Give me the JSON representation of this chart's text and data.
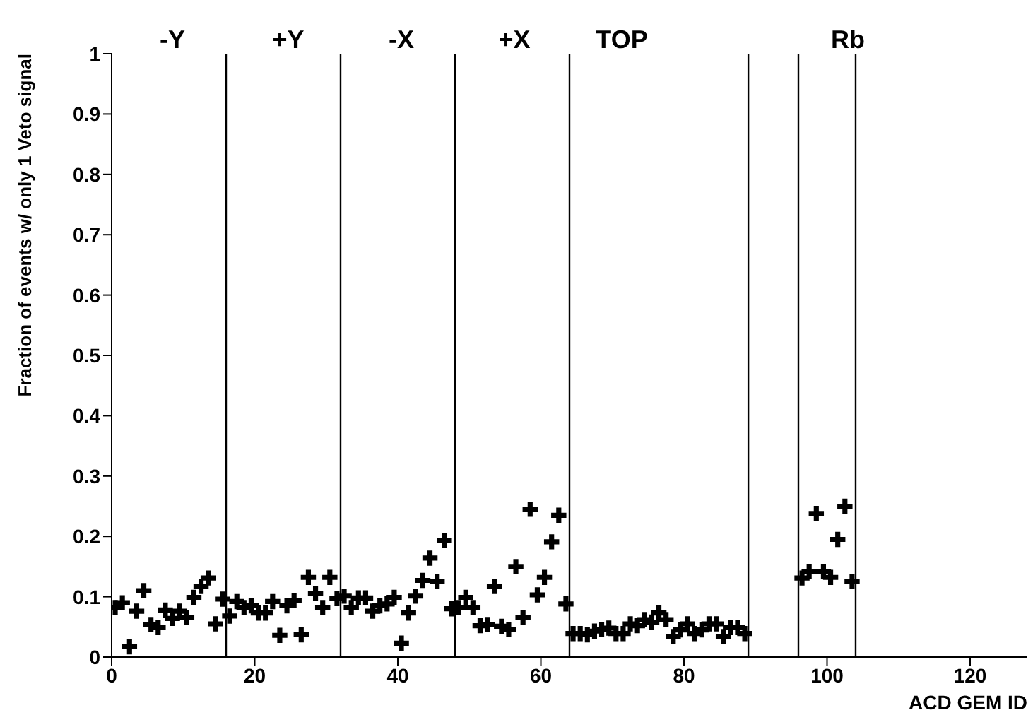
{
  "chart_data": {
    "type": "scatter",
    "xlabel": "ACD GEM ID",
    "ylabel": "Fraction of events w/ only 1 Veto signal",
    "xlim": [
      0,
      128
    ],
    "xticks": [
      0,
      20,
      40,
      60,
      80,
      100,
      120
    ],
    "ylim": [
      0,
      1
    ],
    "yticks": [
      0,
      0.1,
      0.2,
      0.3,
      0.4,
      0.5,
      0.6,
      0.7,
      0.8,
      0.9,
      1
    ],
    "grid": false,
    "legend": false,
    "marker": "cross",
    "series": [
      {
        "color": "#000000",
        "x": [
          0.5,
          1.5,
          2.5,
          3.5,
          4.5,
          5.5,
          6.5,
          7.5,
          8.5,
          9.5,
          10.5,
          11.5,
          12.5,
          13.5,
          14.5,
          15.5,
          16.5,
          17.5,
          18.5,
          19.5,
          20.5,
          21.5,
          22.5,
          23.5,
          24.5,
          25.5,
          26.5,
          27.5,
          28.5,
          29.5,
          30.5,
          31.5,
          32.5,
          33.5,
          34.5,
          35.5,
          36.5,
          37.5,
          38.5,
          39.5,
          40.5,
          41.5,
          42.5,
          43.5,
          44.5,
          45.5,
          46.5,
          47.5,
          48.5,
          49.5,
          50.5,
          51.5,
          52.5,
          53.5,
          54.5,
          55.5,
          56.5,
          57.5,
          58.5,
          59.5,
          60.5,
          61.5,
          62.5,
          63.5,
          64.5,
          65.5,
          66.5,
          67.5,
          68.5,
          69.5,
          70.5,
          71.5,
          72.5,
          73.5,
          74.5,
          75.5,
          76.5,
          77.5,
          78.5,
          79.5,
          80.5,
          81.5,
          82.5,
          83.5,
          84.5,
          85.5,
          86.5,
          87.5,
          88.5,
          96.5,
          97.5,
          98.5,
          99.5,
          100.5,
          101.5,
          102.5,
          103.5
        ],
        "values": [
          0.082,
          0.09,
          0.017,
          0.076,
          0.11,
          0.054,
          0.049,
          0.078,
          0.064,
          0.076,
          0.066,
          0.099,
          0.117,
          0.131,
          0.055,
          0.096,
          0.068,
          0.092,
          0.082,
          0.085,
          0.073,
          0.073,
          0.092,
          0.036,
          0.085,
          0.094,
          0.037,
          0.132,
          0.105,
          0.082,
          0.132,
          0.097,
          0.101,
          0.082,
          0.098,
          0.098,
          0.076,
          0.085,
          0.088,
          0.099,
          0.023,
          0.073,
          0.101,
          0.127,
          0.164,
          0.125,
          0.193,
          0.08,
          0.082,
          0.099,
          0.082,
          0.052,
          0.054,
          0.117,
          0.051,
          0.046,
          0.15,
          0.066,
          0.245,
          0.103,
          0.132,
          0.191,
          0.235,
          0.088,
          0.039,
          0.039,
          0.037,
          0.043,
          0.046,
          0.048,
          0.039,
          0.039,
          0.055,
          0.052,
          0.062,
          0.058,
          0.073,
          0.062,
          0.034,
          0.045,
          0.055,
          0.039,
          0.045,
          0.055,
          0.055,
          0.034,
          0.049,
          0.049,
          0.039,
          0.131,
          0.142,
          0.238,
          0.142,
          0.132,
          0.195,
          0.25,
          0.125
        ]
      }
    ],
    "ref_lines": [
      {
        "axis": "x",
        "value": 16
      },
      {
        "axis": "x",
        "value": 32
      },
      {
        "axis": "x",
        "value": 48
      },
      {
        "axis": "x",
        "value": 64
      },
      {
        "axis": "x",
        "value": 89
      },
      {
        "axis": "x",
        "value": 96
      },
      {
        "axis": "x",
        "value": 104
      }
    ],
    "annotations": [
      "-Y",
      "+Y",
      "-X",
      "+X",
      "TOP",
      "Rb"
    ]
  }
}
